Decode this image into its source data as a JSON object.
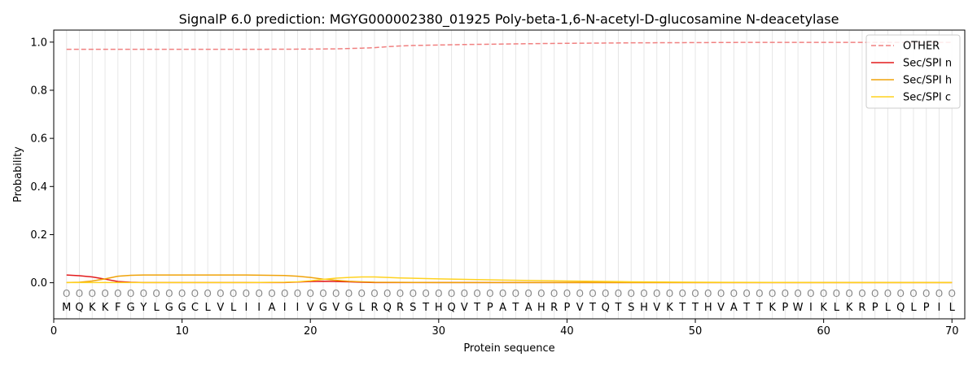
{
  "chart_data": {
    "type": "line",
    "title": "SignalP 6.0 prediction: MGYG000002380_01925 Poly-beta-1,6-N-acetyl-D-glucosamine N-deacetylase",
    "xlabel": "Protein sequence",
    "ylabel": "Probability",
    "xlim": [
      0,
      71
    ],
    "ylim": [
      -0.15,
      1.05
    ],
    "xticks": [
      0,
      10,
      20,
      30,
      40,
      50,
      60,
      70
    ],
    "yticks": [
      0.0,
      0.2,
      0.4,
      0.6,
      0.8,
      1.0
    ],
    "ytick_labels": [
      "0.0",
      "0.2",
      "0.4",
      "0.6",
      "0.8",
      "1.0"
    ],
    "grid": "vertical lines at each residue",
    "legend_position": "top-right",
    "sequence": [
      "M",
      "Q",
      "K",
      "K",
      "F",
      "G",
      "Y",
      "L",
      "G",
      "G",
      "C",
      "L",
      "V",
      "L",
      "I",
      "I",
      "A",
      "I",
      "I",
      "V",
      "G",
      "V",
      "G",
      "L",
      "R",
      "Q",
      "R",
      "S",
      "T",
      "H",
      "Q",
      "V",
      "T",
      "P",
      "A",
      "T",
      "A",
      "H",
      "R",
      "P",
      "V",
      "T",
      "Q",
      "T",
      "S",
      "H",
      "V",
      "K",
      "T",
      "T",
      "H",
      "V",
      "A",
      "T",
      "T",
      "K",
      "P",
      "W",
      "I",
      "K",
      "L",
      "K",
      "R",
      "P",
      "L",
      "Q",
      "L",
      "P",
      "I",
      "L"
    ],
    "region_label": "O",
    "series": [
      {
        "name": "OTHER",
        "color": "#f08080",
        "dashed": true,
        "x": [
          1,
          5,
          10,
          15,
          20,
          22,
          24,
          25,
          26,
          27,
          28,
          30,
          32,
          35,
          38,
          40,
          45,
          50,
          55,
          60,
          65,
          70
        ],
        "values": [
          0.97,
          0.97,
          0.97,
          0.97,
          0.971,
          0.972,
          0.975,
          0.977,
          0.981,
          0.984,
          0.986,
          0.988,
          0.99,
          0.992,
          0.994,
          0.995,
          0.997,
          0.998,
          0.999,
          0.999,
          0.999,
          0.999
        ]
      },
      {
        "name": "Sec/SPI n",
        "color": "#e31a1c",
        "dashed": false,
        "x": [
          1,
          2,
          3,
          4,
          5,
          6,
          7,
          10,
          15,
          18,
          19,
          20,
          21,
          22,
          23,
          24,
          25,
          26,
          30,
          40,
          50,
          60,
          70
        ],
        "values": [
          0.032,
          0.029,
          0.024,
          0.015,
          0.005,
          0.002,
          0.001,
          0.001,
          0.001,
          0.001,
          0.003,
          0.005,
          0.006,
          0.005,
          0.004,
          0.002,
          0.001,
          0.001,
          0.001,
          0.001,
          0.001,
          0.001,
          0.001
        ]
      },
      {
        "name": "Sec/SPI h",
        "color": "#f0a30a",
        "dashed": false,
        "x": [
          1,
          2,
          3,
          4,
          5,
          6,
          7,
          10,
          15,
          18,
          19,
          20,
          21,
          22,
          23,
          24,
          25,
          30,
          40,
          50,
          60,
          70
        ],
        "values": [
          0.001,
          0.002,
          0.007,
          0.016,
          0.027,
          0.031,
          0.032,
          0.032,
          0.032,
          0.03,
          0.027,
          0.022,
          0.015,
          0.01,
          0.006,
          0.004,
          0.002,
          0.001,
          0.001,
          0.001,
          0.001,
          0.001
        ]
      },
      {
        "name": "Sec/SPI c",
        "color": "#ffd21f",
        "dashed": false,
        "x": [
          1,
          3,
          5,
          10,
          15,
          18,
          19,
          20,
          21,
          22,
          23,
          24,
          25,
          26,
          27,
          30,
          35,
          40,
          45,
          50,
          60,
          70
        ],
        "values": [
          0.001,
          0.001,
          0.001,
          0.001,
          0.001,
          0.002,
          0.004,
          0.008,
          0.014,
          0.019,
          0.022,
          0.024,
          0.024,
          0.022,
          0.02,
          0.016,
          0.011,
          0.007,
          0.004,
          0.002,
          0.001,
          0.001
        ]
      }
    ]
  }
}
